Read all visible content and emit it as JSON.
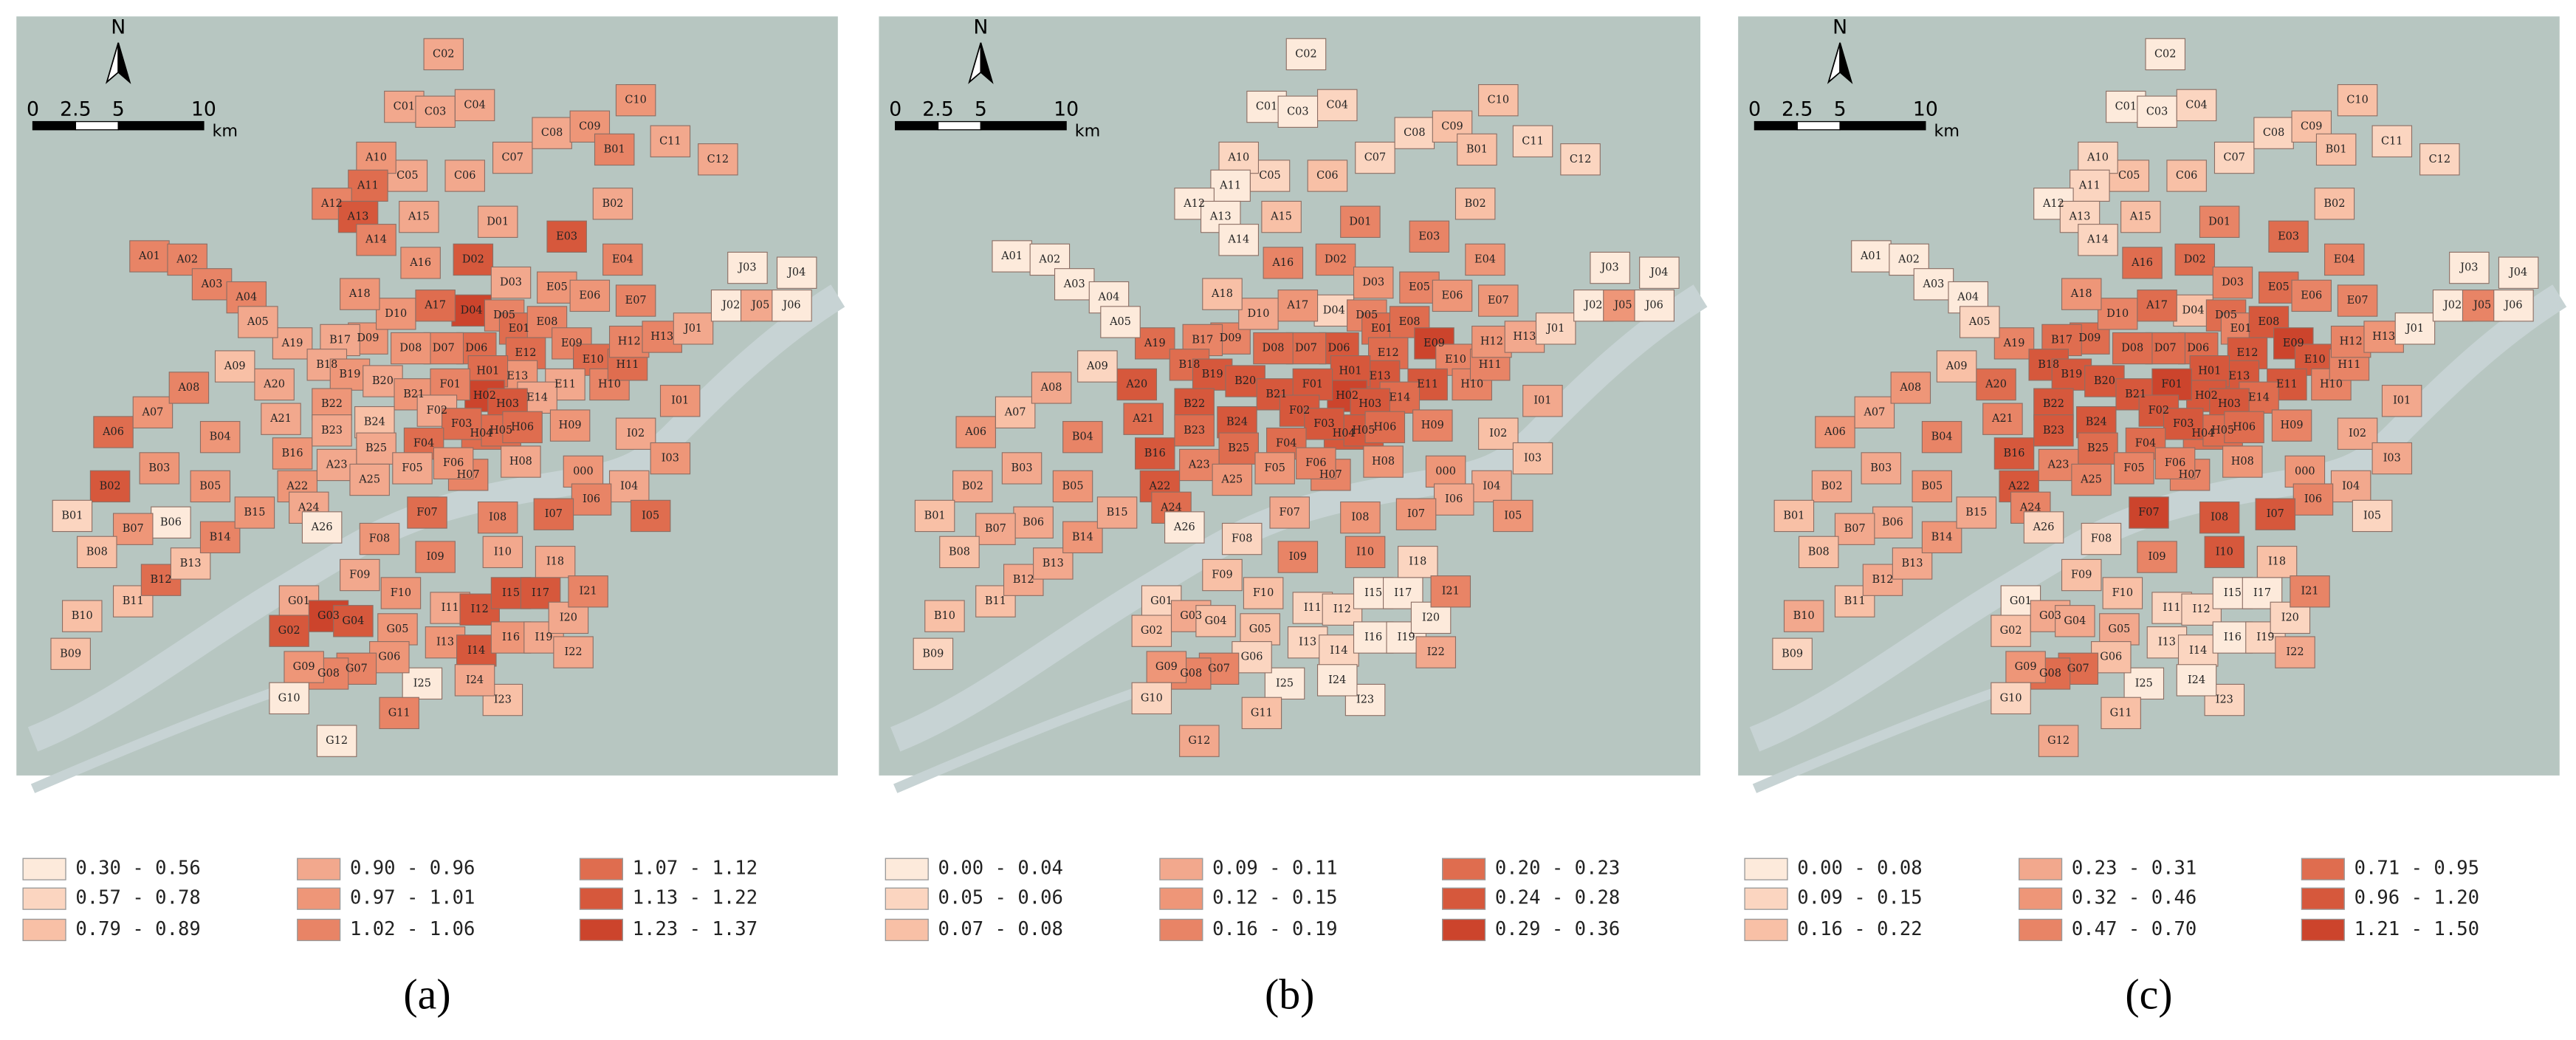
{
  "districts": [
    "C02",
    "C01",
    "C03",
    "C04",
    "C05",
    "C06",
    "C07",
    "C08",
    "C09",
    "C10",
    "C11",
    "C12",
    "B01",
    "B02",
    "A10",
    "A11",
    "A12",
    "A13",
    "A14",
    "A15",
    "D01",
    "D02",
    "D03",
    "D04",
    "D05",
    "D06",
    "D07",
    "D08",
    "D09",
    "D10",
    "A16",
    "A17",
    "A18",
    "A19",
    "A20",
    "A21",
    "A01",
    "A02",
    "A03",
    "A04",
    "A05",
    "A06",
    "A07",
    "A08",
    "A09",
    "B02",
    "B01",
    "B03",
    "B04",
    "B05",
    "B06",
    "B07",
    "B08",
    "B09",
    "B10",
    "B11",
    "B12",
    "B13",
    "B14",
    "B15",
    "B16",
    "B17",
    "B18",
    "B19",
    "B20",
    "B21",
    "B22",
    "B23",
    "B24",
    "B25",
    "A22",
    "A23",
    "A24",
    "A25",
    "A26",
    "E01",
    "E03",
    "E04",
    "E05",
    "E06",
    "E07",
    "E08",
    "E09",
    "E10",
    "E11",
    "E12",
    "E13",
    "E14",
    "H01",
    "H02",
    "H03",
    "H04",
    "H05",
    "H06",
    "H07",
    "H08",
    "H09",
    "H10",
    "H11",
    "H12",
    "H13",
    "F01",
    "F02",
    "F03",
    "F04",
    "F05",
    "F06",
    "F07",
    "F08",
    "F09",
    "F10",
    "000",
    "I01",
    "I02",
    "I03",
    "I04",
    "I05",
    "I06",
    "I07",
    "I08",
    "I09",
    "I10",
    "I11",
    "I12",
    "I13",
    "I14",
    "I15",
    "I16",
    "I17",
    "I18",
    "I19",
    "I20",
    "I21",
    "I22",
    "I23",
    "I24",
    "I25",
    "G01",
    "G02",
    "G03",
    "G04",
    "G05",
    "G06",
    "G07",
    "G08",
    "G09",
    "G10",
    "G11",
    "G12",
    "J01",
    "J02",
    "J03",
    "J04",
    "J05",
    "J06"
  ],
  "north": "N",
  "scale_bar": {
    "ticks": [
      0,
      2.5,
      5,
      10
    ],
    "unit": "km"
  },
  "chart_data": [
    {
      "type": "choropleth",
      "label": "(a)",
      "legend": [
        {
          "label": "0.30 - 0.56",
          "min": 0.3,
          "max": 0.56,
          "color": "#fdeadb"
        },
        {
          "label": "0.57 - 0.78",
          "min": 0.57,
          "max": 0.78,
          "color": "#fbd5c0"
        },
        {
          "label": "0.79 - 0.89",
          "min": 0.79,
          "max": 0.89,
          "color": "#f8c0a6"
        },
        {
          "label": "0.90 - 0.96",
          "min": 0.9,
          "max": 0.96,
          "color": "#f2a88d"
        },
        {
          "label": "0.97 - 1.01",
          "min": 0.97,
          "max": 1.01,
          "color": "#ee9678"
        },
        {
          "label": "1.02 - 1.06",
          "min": 1.02,
          "max": 1.06,
          "color": "#e88466"
        },
        {
          "label": "1.07 - 1.12",
          "min": 1.07,
          "max": 1.12,
          "color": "#df6d4f"
        },
        {
          "label": "1.13 - 1.22",
          "min": 1.13,
          "max": 1.22,
          "color": "#d6583c"
        },
        {
          "label": "1.23 - 1.37",
          "min": 1.23,
          "max": 1.37,
          "color": "#cc442c"
        }
      ],
      "values": [
        0.93,
        0.93,
        0.93,
        0.93,
        0.93,
        0.93,
        0.93,
        0.93,
        0.99,
        0.99,
        0.93,
        0.93,
        1.04,
        0.93,
        0.99,
        1.1,
        1.04,
        1.18,
        1.04,
        0.93,
        0.93,
        1.18,
        0.93,
        1.3,
        1.04,
        1.1,
        1.04,
        0.99,
        0.99,
        0.99,
        0.99,
        1.1,
        0.99,
        0.93,
        0.93,
        0.93,
        1.04,
        1.04,
        1.04,
        1.04,
        0.93,
        1.1,
        0.99,
        1.04,
        0.84,
        1.18,
        0.68,
        0.99,
        0.99,
        0.99,
        0.43,
        0.99,
        0.84,
        0.84,
        0.84,
        0.84,
        1.1,
        0.84,
        1.04,
        0.99,
        0.99,
        0.93,
        0.93,
        0.99,
        0.93,
        0.99,
        0.99,
        0.93,
        0.84,
        0.93,
        0.99,
        0.93,
        0.93,
        0.93,
        0.43,
        1.1,
        1.18,
        1.04,
        0.99,
        0.99,
        1.04,
        1.04,
        1.04,
        1.1,
        0.93,
        1.1,
        0.99,
        0.93,
        1.1,
        1.3,
        1.18,
        1.1,
        1.1,
        1.1,
        1.04,
        0.93,
        0.99,
        1.04,
        1.1,
        1.04,
        1.04,
        1.04,
        0.93,
        1.1,
        1.1,
        0.93,
        0.99,
        1.1,
        0.99,
        0.93,
        0.99,
        0.99,
        0.99,
        0.93,
        0.99,
        0.93,
        1.1,
        1.04,
        1.1,
        1.04,
        1.04,
        0.93,
        0.93,
        1.18,
        0.99,
        1.18,
        1.18,
        0.99,
        1.18,
        0.93,
        0.93,
        0.93,
        1.04,
        0.93,
        0.84,
        0.93,
        0.43,
        0.93,
        1.18,
        1.3,
        1.18,
        0.99,
        0.99,
        1.04,
        1.04,
        0.99,
        0.43,
        1.04,
        0.43,
        0.93,
        0.43,
        0.43,
        0.43,
        0.93,
        0.43
      ]
    },
    {
      "type": "choropleth",
      "label": "(b)",
      "legend": [
        {
          "label": "0.00 - 0.04",
          "min": 0.0,
          "max": 0.04,
          "color": "#fdeadb"
        },
        {
          "label": "0.05 - 0.06",
          "min": 0.05,
          "max": 0.06,
          "color": "#fbd5c0"
        },
        {
          "label": "0.07 - 0.08",
          "min": 0.07,
          "max": 0.08,
          "color": "#f8c0a6"
        },
        {
          "label": "0.09 - 0.11",
          "min": 0.09,
          "max": 0.11,
          "color": "#f2a88d"
        },
        {
          "label": "0.12 - 0.15",
          "min": 0.12,
          "max": 0.15,
          "color": "#ee9678"
        },
        {
          "label": "0.16 - 0.19",
          "min": 0.16,
          "max": 0.19,
          "color": "#e88466"
        },
        {
          "label": "0.20 - 0.23",
          "min": 0.2,
          "max": 0.23,
          "color": "#df6d4f"
        },
        {
          "label": "0.24 - 0.28",
          "min": 0.24,
          "max": 0.28,
          "color": "#d6583c"
        },
        {
          "label": "0.29 - 0.36",
          "min": 0.29,
          "max": 0.36,
          "color": "#cc442c"
        }
      ],
      "values": [
        0.02,
        0.02,
        0.02,
        0.055,
        0.055,
        0.075,
        0.055,
        0.055,
        0.075,
        0.075,
        0.055,
        0.055,
        0.075,
        0.075,
        0.055,
        0.02,
        0.02,
        0.02,
        0.02,
        0.075,
        0.175,
        0.175,
        0.135,
        0.055,
        0.175,
        0.26,
        0.215,
        0.215,
        0.175,
        0.1,
        0.175,
        0.135,
        0.075,
        0.215,
        0.26,
        0.215,
        0.02,
        0.02,
        0.02,
        0.02,
        0.02,
        0.135,
        0.075,
        0.1,
        0.055,
        0.1,
        0.075,
        0.1,
        0.175,
        0.135,
        0.1,
        0.1,
        0.075,
        0.055,
        0.075,
        0.075,
        0.1,
        0.1,
        0.135,
        0.1,
        0.26,
        0.175,
        0.215,
        0.26,
        0.26,
        0.26,
        0.26,
        0.215,
        0.26,
        0.215,
        0.26,
        0.175,
        0.215,
        0.135,
        0.02,
        0.215,
        0.175,
        0.135,
        0.175,
        0.135,
        0.135,
        0.215,
        0.32,
        0.175,
        0.26,
        0.215,
        0.26,
        0.215,
        0.26,
        0.32,
        0.26,
        0.26,
        0.26,
        0.215,
        0.175,
        0.135,
        0.175,
        0.175,
        0.175,
        0.135,
        0.1,
        0.26,
        0.26,
        0.26,
        0.215,
        0.135,
        0.175,
        0.1,
        0.055,
        0.075,
        0.075,
        0.135,
        0.1,
        0.075,
        0.075,
        0.1,
        0.135,
        0.1,
        0.135,
        0.135,
        0.175,
        0.175,
        0.055,
        0.055,
        0.055,
        0.055,
        0.02,
        0.02,
        0.02,
        0.055,
        0.02,
        0.02,
        0.175,
        0.1,
        0.02,
        0.02,
        0.02,
        0.055,
        0.075,
        0.1,
        0.075,
        0.075,
        0.055,
        0.175,
        0.175,
        0.135,
        0.055,
        0.075,
        0.1,
        0.055,
        0.02,
        0.02,
        0.02,
        0.135,
        0.02
      ]
    },
    {
      "type": "choropleth",
      "label": "(c)",
      "legend": [
        {
          "label": "0.00 - 0.08",
          "min": 0.0,
          "max": 0.08,
          "color": "#fdeadb"
        },
        {
          "label": "0.09 - 0.15",
          "min": 0.09,
          "max": 0.15,
          "color": "#fbd5c0"
        },
        {
          "label": "0.16 - 0.22",
          "min": 0.16,
          "max": 0.22,
          "color": "#f8c0a6"
        },
        {
          "label": "0.23 - 0.31",
          "min": 0.23,
          "max": 0.31,
          "color": "#f2a88d"
        },
        {
          "label": "0.32 - 0.46",
          "min": 0.32,
          "max": 0.46,
          "color": "#ee9678"
        },
        {
          "label": "0.47 - 0.70",
          "min": 0.47,
          "max": 0.7,
          "color": "#e88466"
        },
        {
          "label": "0.71 - 0.95",
          "min": 0.71,
          "max": 0.95,
          "color": "#df6d4f"
        },
        {
          "label": "0.96 - 1.20",
          "min": 0.96,
          "max": 1.2,
          "color": "#d6583c"
        },
        {
          "label": "1.21 - 1.50",
          "min": 1.21,
          "max": 1.5,
          "color": "#cc442c"
        }
      ],
      "values": [
        0.04,
        0.04,
        0.04,
        0.12,
        0.19,
        0.19,
        0.12,
        0.12,
        0.19,
        0.19,
        0.12,
        0.12,
        0.19,
        0.19,
        0.12,
        0.12,
        0.04,
        0.12,
        0.12,
        0.19,
        0.58,
        0.83,
        0.58,
        0.19,
        0.83,
        0.83,
        0.83,
        0.83,
        0.83,
        0.58,
        0.83,
        0.83,
        0.39,
        0.58,
        0.83,
        0.58,
        0.04,
        0.04,
        0.04,
        0.04,
        0.12,
        0.39,
        0.27,
        0.39,
        0.19,
        0.27,
        0.19,
        0.27,
        0.58,
        0.39,
        0.27,
        0.27,
        0.19,
        0.12,
        0.27,
        0.19,
        0.27,
        0.27,
        0.39,
        0.27,
        1.08,
        0.83,
        1.08,
        1.08,
        1.08,
        1.08,
        1.08,
        1.08,
        1.08,
        0.83,
        1.08,
        0.58,
        0.58,
        0.58,
        0.12,
        0.58,
        0.83,
        0.58,
        0.83,
        0.58,
        0.58,
        1.08,
        1.35,
        1.08,
        1.08,
        1.08,
        1.08,
        0.83,
        1.08,
        1.08,
        1.08,
        0.83,
        0.83,
        0.83,
        0.58,
        0.39,
        0.58,
        0.58,
        0.58,
        0.58,
        0.39,
        1.35,
        1.08,
        1.08,
        0.83,
        0.58,
        0.58,
        1.35,
        0.12,
        0.19,
        0.19,
        0.39,
        0.27,
        0.27,
        0.27,
        0.27,
        0.12,
        0.58,
        1.08,
        1.08,
        0.58,
        1.08,
        0.12,
        0.12,
        0.12,
        0.12,
        0.04,
        0.04,
        0.04,
        0.19,
        0.12,
        0.12,
        0.58,
        0.27,
        0.12,
        0.04,
        0.04,
        0.04,
        0.19,
        0.27,
        0.27,
        0.27,
        0.19,
        0.83,
        0.83,
        0.39,
        0.12,
        0.19,
        0.27,
        0.04,
        0.04,
        0.04,
        0.04,
        0.58,
        0.04
      ]
    }
  ]
}
